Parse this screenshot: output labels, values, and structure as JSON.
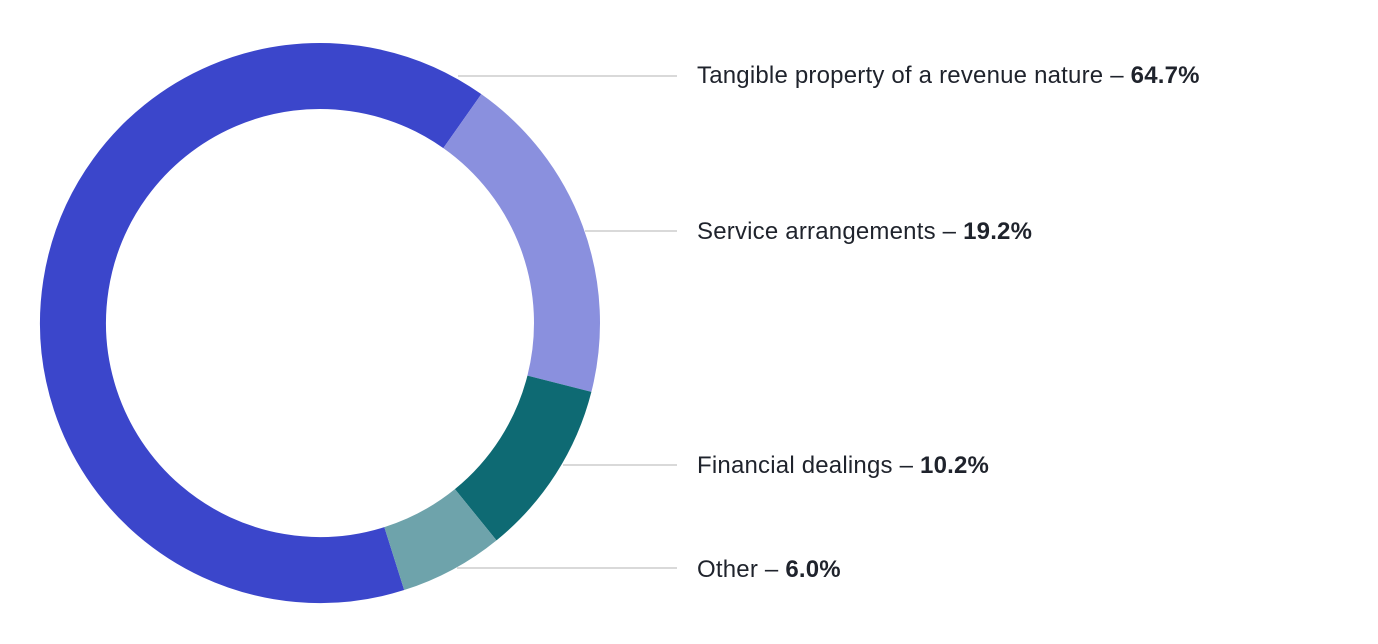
{
  "chart_data": {
    "type": "pie",
    "subtype": "donut",
    "title": "",
    "separator": "–",
    "segments": [
      {
        "label": "Tangible property of a revenue nature",
        "value": 64.7,
        "display": "64.7%",
        "color": "#3B46CB"
      },
      {
        "label": "Service arrangements",
        "value": 19.2,
        "display": "19.2%",
        "color": "#8A90DE"
      },
      {
        "label": "Financial dealings",
        "value": 10.2,
        "display": "10.2%",
        "color": "#0E6A73"
      },
      {
        "label": "Other",
        "value": 6.0,
        "display": "6.0%",
        "color": "#6EA3AB"
      }
    ],
    "layout": {
      "center": [
        320,
        323
      ],
      "outer_radius": 280,
      "inner_radius": 214,
      "start_angle_deg": 162.5,
      "direction": "clockwise",
      "legend_position": "right-callouts",
      "leader_line_color": "#d9d9d9",
      "background": "#ffffff"
    }
  }
}
